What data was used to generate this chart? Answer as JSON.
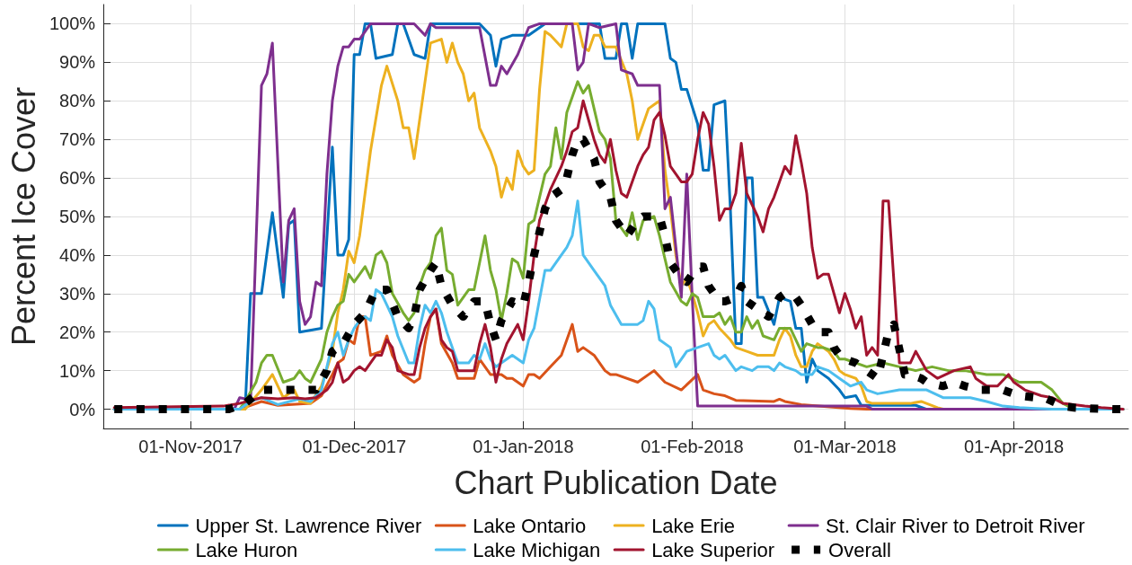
{
  "chart_data": {
    "type": "line",
    "xlabel": "Chart Publication Date",
    "ylabel": "Percent Ice Cover",
    "xlim": [
      "2017-10-16",
      "2018-04-22"
    ],
    "xticks": [
      {
        "value": "2017-11-01",
        "label": "01-Nov-2017"
      },
      {
        "value": "2017-12-01",
        "label": "01-Dec-2017"
      },
      {
        "value": "2018-01-01",
        "label": "01-Jan-2018"
      },
      {
        "value": "2018-02-01",
        "label": "01-Feb-2018"
      },
      {
        "value": "2018-03-01",
        "label": "01-Mar-2018"
      },
      {
        "value": "2018-04-01",
        "label": "01-Apr-2018"
      }
    ],
    "ylim": [
      -5,
      105
    ],
    "yticks": [
      {
        "value": 0,
        "label": "0%"
      },
      {
        "value": 10,
        "label": "10%"
      },
      {
        "value": 20,
        "label": "20%"
      },
      {
        "value": 30,
        "label": "30%"
      },
      {
        "value": 40,
        "label": "40%"
      },
      {
        "value": 50,
        "label": "50%"
      },
      {
        "value": 60,
        "label": "60%"
      },
      {
        "value": 70,
        "label": "70%"
      },
      {
        "value": 80,
        "label": "80%"
      },
      {
        "value": 90,
        "label": "90%"
      },
      {
        "value": 100,
        "label": "100%"
      }
    ],
    "grid": true,
    "legend": "bottom",
    "marker": "none",
    "line_style": "solid",
    "series": [
      {
        "name": "Upper St. Lawrence River",
        "color": "#0072bd",
        "x": [
          "2017-10-18",
          "2017-11-11",
          "2017-11-12",
          "2017-11-14",
          "2017-11-16",
          "2017-11-18",
          "2017-11-19",
          "2017-11-20",
          "2017-11-21",
          "2017-11-25",
          "2017-11-27",
          "2017-11-28",
          "2017-11-29",
          "2017-11-30",
          "2017-12-01",
          "2017-12-02",
          "2017-12-03",
          "2017-12-04",
          "2017-12-05",
          "2017-12-08",
          "2017-12-09",
          "2017-12-10",
          "2017-12-12",
          "2017-12-14",
          "2017-12-15",
          "2017-12-24",
          "2017-12-26",
          "2017-12-27",
          "2017-12-28",
          "2017-12-30",
          "2018-01-02",
          "2018-01-04",
          "2018-01-05",
          "2018-01-15",
          "2018-01-16",
          "2018-01-18",
          "2018-01-19",
          "2018-01-20",
          "2018-01-21",
          "2018-01-22",
          "2018-01-27",
          "2018-01-28",
          "2018-01-29",
          "2018-01-30",
          "2018-01-31",
          "2018-02-02",
          "2018-02-03",
          "2018-02-04",
          "2018-02-05",
          "2018-02-07",
          "2018-02-08",
          "2018-02-09",
          "2018-02-10",
          "2018-02-11",
          "2018-02-12",
          "2018-02-13",
          "2018-02-14",
          "2018-02-16",
          "2018-02-17",
          "2018-02-19",
          "2018-02-20",
          "2018-02-21",
          "2018-02-22",
          "2018-02-23",
          "2018-02-24",
          "2018-02-26",
          "2018-02-28",
          "2018-03-01",
          "2018-03-03",
          "2018-03-04",
          "2018-03-14",
          "2018-03-16",
          "2018-04-21"
        ],
        "values": [
          0,
          0,
          30,
          30,
          51,
          29,
          48,
          49,
          20,
          21,
          68,
          40,
          40,
          44,
          92,
          92,
          100,
          100,
          91,
          92,
          100,
          100,
          92,
          91,
          100,
          100,
          97,
          89,
          96,
          97,
          97,
          99,
          100,
          100,
          91,
          91,
          100,
          100,
          91,
          100,
          100,
          91,
          90,
          83,
          83,
          74,
          62,
          62,
          79,
          80,
          52,
          17,
          17,
          60,
          60,
          29,
          29,
          22,
          29,
          28,
          21,
          21,
          7,
          13,
          10,
          8,
          5,
          3,
          3.5,
          1,
          1,
          0,
          0
        ]
      },
      {
        "name": "Lake Ontario",
        "color": "#d95319",
        "x": [
          "2017-10-18",
          "2017-11-10",
          "2017-11-14",
          "2017-11-17",
          "2017-11-23",
          "2017-11-25",
          "2017-11-27",
          "2017-11-28",
          "2017-11-29",
          "2017-11-30",
          "2017-12-01",
          "2017-12-02",
          "2017-12-03",
          "2017-12-04",
          "2017-12-06",
          "2017-12-07",
          "2017-12-08",
          "2017-12-10",
          "2017-12-12",
          "2017-12-13",
          "2017-12-14",
          "2017-12-15",
          "2017-12-16",
          "2017-12-17",
          "2017-12-19",
          "2017-12-20",
          "2017-12-22",
          "2017-12-23",
          "2017-12-24",
          "2017-12-26",
          "2017-12-28",
          "2017-12-29",
          "2017-12-30",
          "2018-01-01",
          "2018-01-02",
          "2018-01-03",
          "2018-01-04",
          "2018-01-06",
          "2018-01-08",
          "2018-01-10",
          "2018-01-11",
          "2018-01-12",
          "2018-01-14",
          "2018-01-16",
          "2018-01-17",
          "2018-01-18",
          "2018-01-22",
          "2018-01-25",
          "2018-01-27",
          "2018-01-30",
          "2018-02-02",
          "2018-02-03",
          "2018-02-05",
          "2018-02-07",
          "2018-02-09",
          "2018-02-16",
          "2018-02-17",
          "2018-02-18",
          "2018-02-21",
          "2018-03-02",
          "2018-03-05",
          "2018-04-21"
        ],
        "values": [
          0,
          0,
          2,
          1,
          1.5,
          3.5,
          9,
          12,
          13,
          18,
          17,
          24,
          24,
          14,
          15,
          19,
          14,
          9,
          7,
          8,
          17,
          24,
          26,
          17,
          12,
          8,
          8,
          8,
          13,
          9,
          9,
          8,
          8,
          6,
          9,
          9,
          8,
          11,
          14,
          22,
          15,
          16,
          14,
          10,
          9,
          9,
          7,
          10,
          7,
          5,
          9,
          5,
          4,
          3.5,
          2.3,
          2,
          2.6,
          2,
          1.2,
          0.2,
          0,
          0
        ]
      },
      {
        "name": "Lake Erie",
        "color": "#edb120",
        "x": [
          "2017-10-18",
          "2017-11-11",
          "2017-11-14",
          "2017-11-16",
          "2017-11-18",
          "2017-11-20",
          "2017-11-21",
          "2017-11-23",
          "2017-11-25",
          "2017-11-27",
          "2017-11-28",
          "2017-11-29",
          "2017-11-30",
          "2017-12-01",
          "2017-12-02",
          "2017-12-04",
          "2017-12-06",
          "2017-12-07",
          "2017-12-09",
          "2017-12-10",
          "2017-12-11",
          "2017-12-12",
          "2017-12-15",
          "2017-12-17",
          "2017-12-18",
          "2017-12-19",
          "2017-12-20",
          "2017-12-21",
          "2017-12-22",
          "2017-12-23",
          "2017-12-24",
          "2017-12-26",
          "2017-12-27",
          "2017-12-28",
          "2017-12-29",
          "2017-12-30",
          "2017-12-31",
          "2018-01-01",
          "2018-01-02",
          "2018-01-03",
          "2018-01-04",
          "2018-01-05",
          "2018-01-06",
          "2018-01-08",
          "2018-01-09",
          "2018-01-11",
          "2018-01-12",
          "2018-01-13",
          "2018-01-14",
          "2018-01-15",
          "2018-01-16",
          "2018-01-18",
          "2018-01-20",
          "2018-01-21",
          "2018-01-22",
          "2018-01-24",
          "2018-01-25",
          "2018-01-26",
          "2018-01-27",
          "2018-01-28",
          "2018-01-29",
          "2018-01-30",
          "2018-01-31",
          "2018-02-01",
          "2018-02-02",
          "2018-02-03",
          "2018-02-04",
          "2018-02-05",
          "2018-02-06",
          "2018-02-08",
          "2018-02-09",
          "2018-02-11",
          "2018-02-13",
          "2018-02-16",
          "2018-02-17",
          "2018-02-18",
          "2018-02-19",
          "2018-02-20",
          "2018-02-21",
          "2018-02-22",
          "2018-02-23",
          "2018-02-24",
          "2018-02-26",
          "2018-02-27",
          "2018-02-28",
          "2018-03-01",
          "2018-03-03",
          "2018-03-04",
          "2018-03-05",
          "2018-03-06",
          "2018-03-13",
          "2018-03-15",
          "2018-03-18",
          "2018-03-19",
          "2018-04-21"
        ],
        "values": [
          0,
          0,
          5,
          9,
          3,
          5,
          2,
          1.5,
          6,
          15,
          25,
          31,
          41,
          38,
          45,
          67,
          84,
          89,
          80,
          73,
          73,
          65,
          95,
          96,
          90,
          95,
          90,
          87,
          80,
          82,
          73,
          67,
          63,
          55,
          60,
          57,
          67,
          63,
          61,
          62,
          83,
          98,
          97,
          94,
          100,
          100,
          94,
          93,
          97,
          97,
          94,
          94,
          87,
          80,
          70,
          78,
          79,
          80,
          62,
          52,
          40,
          32,
          34,
          30,
          25,
          19,
          22,
          23,
          21,
          18,
          16,
          15,
          14,
          14,
          18,
          21,
          19,
          14,
          11,
          11,
          15,
          17,
          15,
          13,
          10,
          9,
          8,
          6,
          2,
          1.5,
          1.5,
          2,
          0.4,
          0,
          0
        ]
      },
      {
        "name": "St. Clair River to Detroit River",
        "color": "#7e2f8e",
        "x": [
          "2017-10-18",
          "2017-11-09",
          "2017-11-10",
          "2017-11-11",
          "2017-11-12",
          "2017-11-14",
          "2017-11-15",
          "2017-11-16",
          "2017-11-18",
          "2017-11-19",
          "2017-11-20",
          "2017-11-21",
          "2017-11-22",
          "2017-11-23",
          "2017-11-24",
          "2017-11-25",
          "2017-11-26",
          "2017-11-27",
          "2017-11-28",
          "2017-11-29",
          "2017-11-30",
          "2017-12-01",
          "2017-12-02",
          "2017-12-03",
          "2017-12-04",
          "2017-12-12",
          "2017-12-14",
          "2017-12-15",
          "2017-12-16",
          "2017-12-24",
          "2017-12-26",
          "2017-12-27",
          "2017-12-28",
          "2017-12-29",
          "2017-12-31",
          "2018-01-02",
          "2018-01-04",
          "2018-01-10",
          "2018-01-11",
          "2018-01-12",
          "2018-01-13",
          "2018-01-15",
          "2018-01-18",
          "2018-01-19",
          "2018-01-21",
          "2018-01-22",
          "2018-01-26",
          "2018-01-27",
          "2018-01-28",
          "2018-01-30",
          "2018-01-31",
          "2018-02-01",
          "2018-02-02",
          "2018-03-05",
          "2018-03-06",
          "2018-04-21"
        ],
        "values": [
          0,
          0,
          3,
          2.7,
          2,
          84,
          87,
          95,
          33,
          49,
          52,
          28,
          22,
          24,
          33,
          32,
          61,
          80,
          89,
          94,
          94,
          96,
          96,
          98,
          100,
          100,
          97,
          100,
          99,
          99,
          84,
          84,
          89,
          87,
          92,
          99,
          100,
          100,
          88,
          90,
          100,
          99,
          100,
          88,
          87,
          84,
          84,
          52,
          55,
          29,
          61,
          29,
          0.8,
          0.8,
          0,
          0
        ]
      },
      {
        "name": "Lake Huron",
        "color": "#77ac30",
        "x": [
          "2017-10-18",
          "2017-11-10",
          "2017-11-11",
          "2017-11-13",
          "2017-11-14",
          "2017-11-15",
          "2017-11-16",
          "2017-11-18",
          "2017-11-20",
          "2017-11-21",
          "2017-11-22",
          "2017-11-23",
          "2017-11-25",
          "2017-11-26",
          "2017-11-27",
          "2017-11-28",
          "2017-11-29",
          "2017-11-30",
          "2017-12-01",
          "2017-12-02",
          "2017-12-03",
          "2017-12-04",
          "2017-12-05",
          "2017-12-06",
          "2017-12-07",
          "2017-12-08",
          "2017-12-10",
          "2017-12-11",
          "2017-12-12",
          "2017-12-13",
          "2017-12-14",
          "2017-12-15",
          "2017-12-16",
          "2017-12-17",
          "2017-12-18",
          "2017-12-19",
          "2017-12-20",
          "2017-12-22",
          "2017-12-23",
          "2017-12-25",
          "2017-12-26",
          "2017-12-27",
          "2017-12-28",
          "2017-12-29",
          "2017-12-30",
          "2017-12-31",
          "2018-01-01",
          "2018-01-02",
          "2018-01-03",
          "2018-01-05",
          "2018-01-06",
          "2018-01-07",
          "2018-01-08",
          "2018-01-09",
          "2018-01-10",
          "2018-01-11",
          "2018-01-12",
          "2018-01-13",
          "2018-01-15",
          "2018-01-16",
          "2018-01-17",
          "2018-01-18",
          "2018-01-20",
          "2018-01-21",
          "2018-01-22",
          "2018-01-23",
          "2018-01-25",
          "2018-01-26",
          "2018-01-27",
          "2018-01-28",
          "2018-01-30",
          "2018-01-31",
          "2018-02-01",
          "2018-02-02",
          "2018-02-03",
          "2018-02-05",
          "2018-02-06",
          "2018-02-07",
          "2018-02-08",
          "2018-02-09",
          "2018-02-10",
          "2018-02-11",
          "2018-02-12",
          "2018-02-13",
          "2018-02-14",
          "2018-02-16",
          "2018-02-17",
          "2018-02-19",
          "2018-02-21",
          "2018-02-22",
          "2018-02-24",
          "2018-02-25",
          "2018-02-27",
          "2018-02-28",
          "2018-03-01",
          "2018-03-05",
          "2018-03-08",
          "2018-03-11",
          "2018-03-14",
          "2018-03-17",
          "2018-03-20",
          "2018-03-23",
          "2018-03-27",
          "2018-03-30",
          "2018-04-02",
          "2018-04-06",
          "2018-04-08",
          "2018-04-10",
          "2018-04-12",
          "2018-04-21"
        ],
        "values": [
          0,
          0,
          2,
          7,
          12,
          14,
          14,
          7,
          8,
          10,
          8,
          7,
          13,
          20,
          24,
          27,
          28,
          35,
          33,
          35,
          37,
          34,
          40,
          41,
          38,
          30,
          25,
          23,
          25,
          32,
          36,
          38,
          45,
          47,
          36,
          35,
          27,
          31,
          31,
          45,
          36,
          31,
          23,
          30,
          39,
          38,
          34,
          48,
          49,
          61,
          63,
          73,
          65,
          77,
          81,
          85,
          82,
          84,
          72,
          70,
          65,
          49,
          45,
          51,
          44,
          49,
          50,
          45,
          39,
          33,
          28,
          27,
          30,
          29,
          24,
          24,
          25,
          22,
          24,
          20,
          20,
          24,
          21,
          23,
          19,
          18,
          21,
          21,
          15,
          17,
          16,
          16,
          15,
          13,
          13,
          11,
          12,
          11,
          10,
          11,
          10,
          10,
          9,
          9,
          7,
          7,
          5,
          1.5,
          0,
          0
        ]
      },
      {
        "name": "Lake Michigan",
        "color": "#4dbeee",
        "x": [
          "2017-10-18",
          "2017-11-10",
          "2017-11-12",
          "2017-11-14",
          "2017-11-17",
          "2017-11-21",
          "2017-11-23",
          "2017-11-25",
          "2017-11-27",
          "2017-11-28",
          "2017-11-29",
          "2017-11-30",
          "2017-12-01",
          "2017-12-02",
          "2017-12-03",
          "2017-12-04",
          "2017-12-05",
          "2017-12-06",
          "2017-12-07",
          "2017-12-08",
          "2017-12-09",
          "2017-12-11",
          "2017-12-12",
          "2017-12-13",
          "2017-12-14",
          "2017-12-15",
          "2017-12-16",
          "2017-12-17",
          "2017-12-18",
          "2017-12-20",
          "2017-12-22",
          "2017-12-23",
          "2017-12-24",
          "2017-12-25",
          "2017-12-26",
          "2017-12-27",
          "2017-12-29",
          "2017-12-30",
          "2018-01-01",
          "2018-01-02",
          "2018-01-03",
          "2018-01-05",
          "2018-01-06",
          "2018-01-08",
          "2018-01-09",
          "2018-01-10",
          "2018-01-11",
          "2018-01-12",
          "2018-01-14",
          "2018-01-16",
          "2018-01-17",
          "2018-01-19",
          "2018-01-22",
          "2018-01-23",
          "2018-01-24",
          "2018-01-25",
          "2018-01-26",
          "2018-01-28",
          "2018-01-29",
          "2018-01-30",
          "2018-01-31",
          "2018-02-02",
          "2018-02-04",
          "2018-02-05",
          "2018-02-06",
          "2018-02-07",
          "2018-02-09",
          "2018-02-10",
          "2018-02-12",
          "2018-02-13",
          "2018-02-15",
          "2018-02-16",
          "2018-02-17",
          "2018-02-18",
          "2018-02-20",
          "2018-02-21",
          "2018-02-23",
          "2018-02-24",
          "2018-02-26",
          "2018-02-28",
          "2018-03-02",
          "2018-03-04",
          "2018-03-05",
          "2018-03-07",
          "2018-03-11",
          "2018-03-14",
          "2018-03-16",
          "2018-03-19",
          "2018-03-24",
          "2018-03-27",
          "2018-03-30",
          "2018-04-02",
          "2018-04-05",
          "2018-04-08",
          "2018-04-21"
        ],
        "values": [
          0,
          0,
          2,
          3,
          1.2,
          2.7,
          2,
          5,
          17,
          20,
          14,
          18,
          21,
          23,
          24,
          23,
          31,
          30,
          27,
          24,
          19,
          12,
          12,
          21,
          27,
          25,
          28,
          25,
          20,
          12,
          12,
          14,
          13,
          17,
          13,
          11,
          13,
          14,
          12,
          18,
          21,
          36,
          36,
          40,
          42,
          45,
          54,
          40,
          36,
          32,
          27,
          22,
          22,
          23,
          28,
          26,
          18,
          16,
          11,
          13,
          15,
          16,
          17,
          14,
          13,
          14,
          10,
          11,
          10,
          11,
          11,
          10,
          12,
          11,
          10,
          9,
          9,
          11,
          10,
          8,
          6,
          7,
          5,
          4,
          5,
          5,
          5,
          3,
          3,
          2,
          0.8,
          0.4,
          0.2,
          0,
          0
        ]
      },
      {
        "name": "Lake Superior",
        "color": "#a2142f",
        "x": [
          "2017-10-18",
          "2017-11-07",
          "2017-11-10",
          "2017-11-12",
          "2017-11-14",
          "2017-11-17",
          "2017-11-20",
          "2017-11-22",
          "2017-11-24",
          "2017-11-26",
          "2017-11-27",
          "2017-11-28",
          "2017-11-29",
          "2017-11-30",
          "2017-12-01",
          "2017-12-02",
          "2017-12-03",
          "2017-12-05",
          "2017-12-06",
          "2017-12-07",
          "2017-12-08",
          "2017-12-09",
          "2017-12-11",
          "2017-12-12",
          "2017-12-13",
          "2017-12-14",
          "2017-12-15",
          "2017-12-16",
          "2017-12-17",
          "2017-12-18",
          "2017-12-19",
          "2017-12-20",
          "2017-12-21",
          "2017-12-23",
          "2017-12-24",
          "2017-12-25",
          "2017-12-26",
          "2017-12-27",
          "2017-12-28",
          "2017-12-29",
          "2017-12-31",
          "2018-01-01",
          "2018-01-02",
          "2018-01-03",
          "2018-01-04",
          "2018-01-05",
          "2018-01-06",
          "2018-01-08",
          "2018-01-09",
          "2018-01-10",
          "2018-01-11",
          "2018-01-12",
          "2018-01-13",
          "2018-01-14",
          "2018-01-15",
          "2018-01-16",
          "2018-01-17",
          "2018-01-18",
          "2018-01-19",
          "2018-01-20",
          "2018-01-22",
          "2018-01-23",
          "2018-01-24",
          "2018-01-25",
          "2018-01-26",
          "2018-01-27",
          "2018-01-28",
          "2018-01-30",
          "2018-01-31",
          "2018-02-01",
          "2018-02-02",
          "2018-02-03",
          "2018-02-04",
          "2018-02-05",
          "2018-02-06",
          "2018-02-07",
          "2018-02-08",
          "2018-02-09",
          "2018-02-10",
          "2018-02-11",
          "2018-02-13",
          "2018-02-14",
          "2018-02-15",
          "2018-02-16",
          "2018-02-17",
          "2018-02-18",
          "2018-02-19",
          "2018-02-20",
          "2018-02-21",
          "2018-02-22",
          "2018-02-23",
          "2018-02-24",
          "2018-02-25",
          "2018-02-26",
          "2018-02-27",
          "2018-02-28",
          "2018-03-01",
          "2018-03-02",
          "2018-03-03",
          "2018-03-04",
          "2018-03-05",
          "2018-03-06",
          "2018-03-07",
          "2018-03-08",
          "2018-03-09",
          "2018-03-11",
          "2018-03-13",
          "2018-03-14",
          "2018-03-16",
          "2018-03-18",
          "2018-03-21",
          "2018-03-24",
          "2018-03-25",
          "2018-03-27",
          "2018-03-29",
          "2018-03-31",
          "2018-04-01",
          "2018-04-03",
          "2018-04-06",
          "2018-04-08",
          "2018-04-10",
          "2018-04-14",
          "2018-04-17",
          "2018-04-21"
        ],
        "values": [
          0.4,
          0.8,
          1.5,
          2.3,
          3,
          2.7,
          3,
          2.7,
          3,
          5,
          7,
          12,
          7,
          8,
          10,
          11,
          10,
          14,
          14,
          18,
          16,
          10,
          9,
          9,
          16,
          21,
          24,
          26,
          18,
          16,
          15,
          10,
          10,
          10,
          17,
          22,
          16,
          7,
          13,
          17,
          22,
          18,
          28,
          40,
          49,
          53,
          57,
          63,
          67,
          72,
          73,
          80,
          75,
          70,
          66,
          64,
          70,
          62,
          56,
          55,
          63,
          66,
          68,
          75,
          77,
          71,
          63,
          59,
          59,
          61,
          70,
          77,
          74,
          63,
          49,
          52,
          52,
          56,
          69,
          56,
          50,
          46,
          52,
          55,
          59,
          63,
          61,
          71,
          64,
          56,
          42,
          34,
          35,
          35,
          30,
          25,
          30,
          26,
          21,
          24,
          14,
          16,
          14,
          54,
          54,
          12,
          12,
          15,
          10,
          8,
          10,
          11,
          8,
          6,
          6,
          9,
          7,
          5,
          3.5,
          3,
          1.5,
          0.8,
          0.4,
          0
        ]
      },
      {
        "name": "Overall",
        "color": "#000000",
        "line_style": "dotted",
        "x": [
          "2017-10-18",
          "2017-11-08",
          "2017-11-11",
          "2017-11-14",
          "2017-11-17",
          "2017-11-20",
          "2017-11-24",
          "2017-11-26",
          "2017-11-27",
          "2017-11-29",
          "2017-12-01",
          "2017-12-03",
          "2017-12-05",
          "2017-12-06",
          "2017-12-07",
          "2017-12-09",
          "2017-12-11",
          "2017-12-12",
          "2017-12-13",
          "2017-12-15",
          "2017-12-16",
          "2017-12-17",
          "2017-12-19",
          "2017-12-21",
          "2017-12-23",
          "2017-12-25",
          "2017-12-26",
          "2017-12-27",
          "2017-12-28",
          "2017-12-30",
          "2018-01-01",
          "2018-01-02",
          "2018-01-03",
          "2018-01-04",
          "2018-01-05",
          "2018-01-06",
          "2018-01-08",
          "2018-01-09",
          "2018-01-10",
          "2018-01-11",
          "2018-01-12",
          "2018-01-14",
          "2018-01-15",
          "2018-01-17",
          "2018-01-18",
          "2018-01-20",
          "2018-01-22",
          "2018-01-23",
          "2018-01-26",
          "2018-01-27",
          "2018-01-28",
          "2018-01-30",
          "2018-01-31",
          "2018-02-02",
          "2018-02-03",
          "2018-02-04",
          "2018-02-06",
          "2018-02-07",
          "2018-02-09",
          "2018-02-10",
          "2018-02-11",
          "2018-02-13",
          "2018-02-15",
          "2018-02-17",
          "2018-02-18",
          "2018-02-20",
          "2018-02-21",
          "2018-02-23",
          "2018-02-24",
          "2018-02-26",
          "2018-02-27",
          "2018-02-28",
          "2018-03-01",
          "2018-03-03",
          "2018-03-05",
          "2018-03-07",
          "2018-03-08",
          "2018-03-09",
          "2018-03-10",
          "2018-03-12",
          "2018-03-13",
          "2018-03-15",
          "2018-03-16",
          "2018-03-19",
          "2018-03-21",
          "2018-03-23",
          "2018-03-26",
          "2018-03-30",
          "2018-04-02",
          "2018-04-07",
          "2018-04-10",
          "2018-04-12",
          "2018-04-15",
          "2018-04-20",
          "2018-04-21"
        ],
        "values": [
          0,
          0,
          1.5,
          5,
          5,
          5,
          5,
          10,
          15,
          17,
          22,
          25,
          31,
          31,
          31,
          24,
          21,
          24,
          31,
          36,
          38,
          32,
          27,
          24,
          28,
          28,
          22,
          18,
          23,
          28,
          27,
          33,
          40,
          46,
          52,
          55,
          57,
          60,
          66,
          70,
          70,
          65,
          59,
          55,
          49,
          45,
          49,
          50,
          50,
          45,
          38,
          34,
          33,
          37,
          37,
          32,
          28,
          28,
          29,
          32,
          28,
          26,
          24,
          29,
          30,
          29,
          27,
          22,
          20,
          20,
          16,
          14,
          13,
          12,
          10,
          8,
          14,
          20,
          22,
          9,
          9,
          8,
          7,
          6,
          7,
          6,
          5,
          5,
          3.5,
          2.7,
          0.8,
          0.4,
          0.2,
          0,
          0
        ]
      }
    ]
  }
}
